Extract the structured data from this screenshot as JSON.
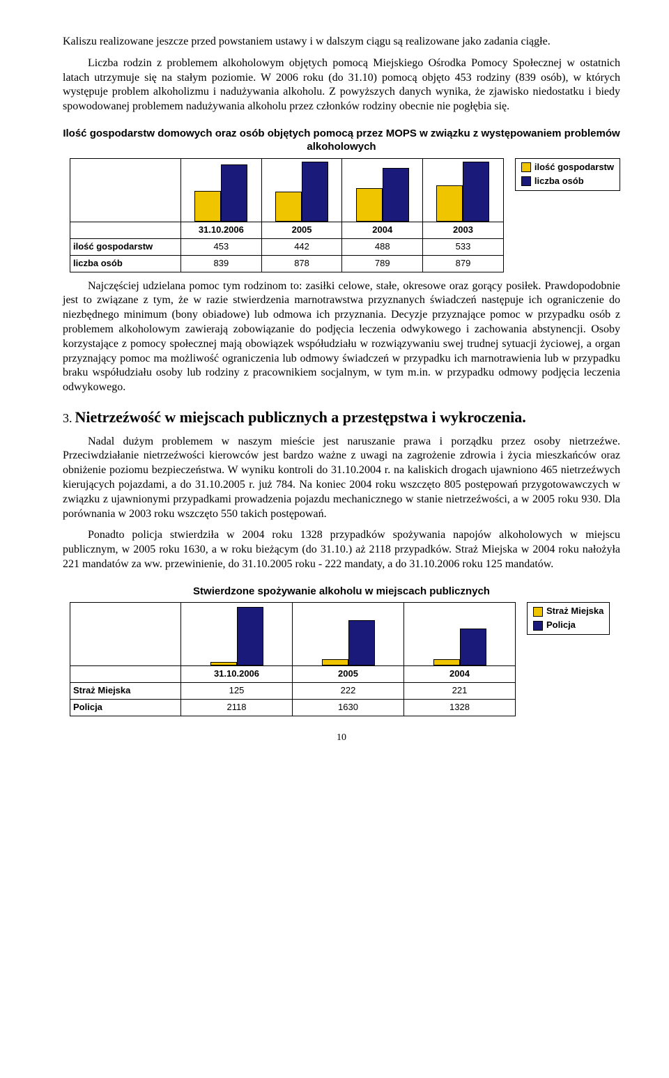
{
  "para1": "Kaliszu realizowane jeszcze przed powstaniem ustawy i w dalszym ciągu są realizowane jako zadania ciągłe.",
  "para2": "Liczba rodzin z problemem alkoholowym objętych pomocą Miejskiego Ośrodka Pomocy Społecznej w ostatnich latach utrzymuje się na stałym poziomie. W 2006 roku (do 31.10) pomocą objęto 453 rodziny (839 osób), w których występuje problem alkoholizmu i nadużywania alkoholu. Z powyższych danych wynika, że zjawisko niedostatku i biedy spowodowanej problemem nadużywania alkoholu przez członków rodziny obecnie nie pogłębia się.",
  "chart1": {
    "title": "Ilość gospodarstw domowych oraz osób objętych pomocą przez MOPS w związku z występowaniem problemów alkoholowych",
    "legend": [
      {
        "label": "ilość gospodarstw",
        "color": "#efc500"
      },
      {
        "label": "liczba osób",
        "color": "#1a1a7a"
      }
    ],
    "columns": [
      "31.10.2006",
      "2005",
      "2004",
      "2003"
    ],
    "rows": [
      {
        "label": "ilość gospodarstw",
        "values": [
          453,
          442,
          488,
          533
        ]
      },
      {
        "label": "liczba osób",
        "values": [
          839,
          878,
          789,
          879
        ]
      }
    ],
    "max": 900,
    "barColors": [
      "#efc500",
      "#1a1a7a"
    ]
  },
  "para3": "Najczęściej udzielana pomoc tym rodzinom to: zasiłki celowe, stałe, okresowe oraz gorący posiłek. Prawdopodobnie jest to związane z tym, że w razie stwierdzenia marnotrawstwa przyznanych świadczeń następuje ich ograniczenie do niezbędnego minimum (bony obiadowe) lub odmowa ich przyznania. Decyzje przyznające pomoc w przypadku osób z problemem alkoholowym zawierają zobowiązanie do podjęcia leczenia odwykowego i zachowania abstynencji. Osoby korzystające z pomocy społecznej mają obowiązek współudziału w rozwiązywaniu swej trudnej sytuacji życiowej, a organ przyznający pomoc ma możliwość ograniczenia lub odmowy świadczeń w przypadku ich marnotrawienia lub w przypadku braku współudziału osoby lub rodziny z pracownikiem socjalnym, w tym m.in. w przypadku odmowy podjęcia leczenia odwykowego.",
  "heading": {
    "num": "3.",
    "text": "Nietrzeźwość w miejscach publicznych a przestępstwa i wykroczenia."
  },
  "para4": "Nadal dużym problemem w naszym mieście jest naruszanie prawa i porządku przez osoby nietrzeźwe. Przeciwdziałanie nietrzeźwości kierowców jest bardzo ważne z uwagi na zagrożenie zdrowia i życia mieszkańców oraz obniżenie poziomu bezpieczeństwa. W wyniku kontroli do 31.10.2004 r. na kaliskich drogach ujawniono 465 nietrzeźwych kierujących pojazdami, a do 31.10.2005 r. już 784. Na koniec 2004 roku wszczęto 805 postępowań przygotowawczych w związku z ujawnionymi przypadkami prowadzenia pojazdu mechanicznego w stanie nietrzeźwości, a w 2005 roku 930. Dla porównania w 2003 roku wszczęto 550 takich postępowań.",
  "para5": "Ponadto policja stwierdziła w 2004 roku 1328 przypadków spożywania napojów alkoholowych w miejscu publicznym, w 2005 roku 1630, a w roku bieżącym (do 31.10.) aż 2118 przypadków. Straż Miejska w 2004 roku nałożyła 221 mandatów za ww. przewinienie, do 31.10.2005 roku - 222 mandaty, a do 31.10.2006 roku 125 mandatów.",
  "chart2": {
    "title": "Stwierdzone spożywanie alkoholu w miejscach publicznych",
    "legend": [
      {
        "label": "Straż Miejska",
        "color": "#efc500"
      },
      {
        "label": "Policja",
        "color": "#1a1a7a"
      }
    ],
    "columns": [
      "31.10.2006",
      "2005",
      "2004"
    ],
    "rows": [
      {
        "label": "Straż Miejska",
        "values": [
          125,
          222,
          221
        ]
      },
      {
        "label": "Policja",
        "values": [
          2118,
          1630,
          1328
        ]
      }
    ],
    "max": 2200,
    "barColors": [
      "#efc500",
      "#1a1a7a"
    ]
  },
  "pagenum": "10"
}
